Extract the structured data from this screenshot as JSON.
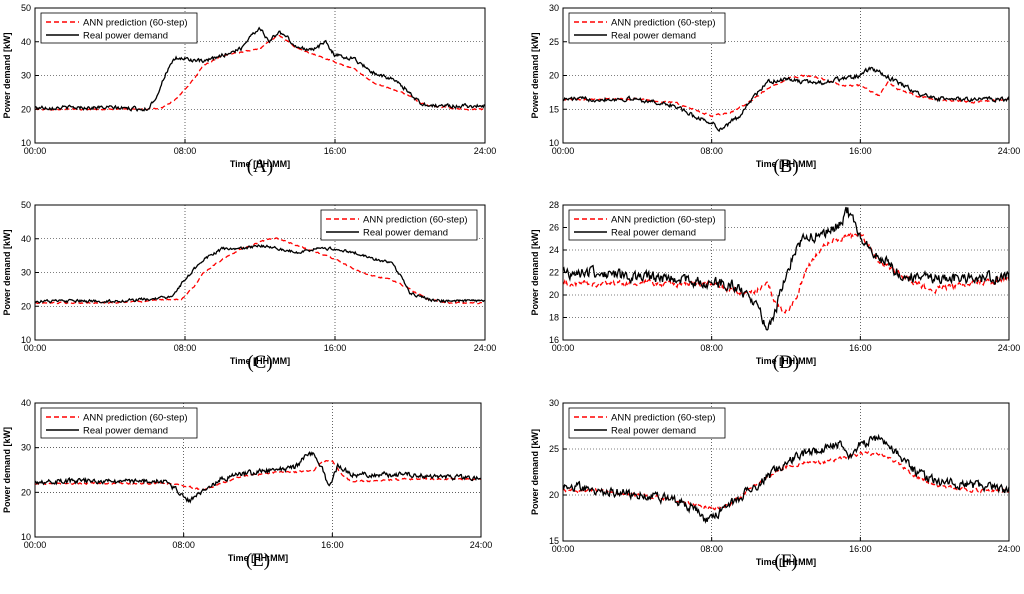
{
  "chart_data": [
    {
      "type": "line",
      "panel": "(A)",
      "panel_letter": "A",
      "title": "",
      "xlabel": "Time [HH:MM]",
      "ylabel": "Power demand [kW]",
      "xlim": [
        0,
        24
      ],
      "ylim": [
        10,
        50
      ],
      "x_ticks": [
        "00:00",
        "08:00",
        "16:00",
        "24:00"
      ],
      "y_ticks": [
        10,
        20,
        30,
        40,
        50
      ],
      "grid": true,
      "legend_position": "top-left",
      "series": [
        {
          "name": "ANN prediction (60-step)",
          "color": "#ff0000",
          "dash": true,
          "noise": 0.3,
          "x": [
            0,
            2,
            4,
            6,
            6.8,
            7.5,
            8.2,
            9,
            10,
            11,
            12,
            12.5,
            13,
            14,
            15,
            16,
            17,
            18,
            19,
            20,
            20.5,
            21,
            22,
            23,
            24
          ],
          "values": [
            20,
            20,
            20,
            20,
            20.5,
            23,
            27,
            33,
            36,
            37,
            38,
            40,
            42,
            38,
            36,
            34,
            32,
            28,
            26,
            24,
            22,
            21,
            20.5,
            20,
            20
          ]
        },
        {
          "name": "Real power demand",
          "color": "#000000",
          "dash": false,
          "noise": 0.9,
          "x": [
            0,
            2,
            4,
            6,
            6.5,
            7,
            7.5,
            8,
            9,
            10,
            11,
            11.5,
            12,
            12.5,
            13,
            13.5,
            14,
            15,
            15.5,
            16,
            17,
            18,
            19,
            19.8,
            20.5,
            21,
            22,
            23,
            24
          ],
          "values": [
            20.5,
            20.5,
            20.5,
            20,
            24,
            31,
            35,
            35,
            34,
            36,
            38,
            42,
            44,
            40,
            43,
            41,
            38,
            38,
            40,
            36,
            35,
            31,
            29,
            26,
            22,
            21,
            21,
            21,
            21
          ]
        }
      ]
    },
    {
      "type": "line",
      "panel": "(B)",
      "panel_letter": "B",
      "title": "",
      "xlabel": "Time [HH:MM]",
      "ylabel": "Power demand [kW]",
      "xlim": [
        0,
        24
      ],
      "ylim": [
        10,
        30
      ],
      "x_ticks": [
        "00:00",
        "08:00",
        "16:00",
        "24:00"
      ],
      "y_ticks": [
        10,
        15,
        20,
        25,
        30
      ],
      "grid": true,
      "legend_position": "top-left",
      "series": [
        {
          "name": "ANN prediction (60-step)",
          "color": "#ff0000",
          "dash": true,
          "noise": 0.2,
          "x": [
            0,
            2,
            4,
            6,
            7,
            8,
            9,
            10,
            11,
            12,
            13,
            14,
            15,
            16,
            17,
            17.5,
            18,
            19,
            20,
            22,
            24
          ],
          "values": [
            16.5,
            16.5,
            16.5,
            16,
            15,
            14,
            14.5,
            16,
            18,
            19.5,
            20,
            19.5,
            18.5,
            18.5,
            17,
            19,
            18,
            17,
            16.5,
            16,
            16.5
          ]
        },
        {
          "name": "Real power demand",
          "color": "#000000",
          "dash": false,
          "noise": 0.5,
          "x": [
            0,
            2,
            4,
            6,
            7,
            8,
            8.5,
            9,
            9.5,
            10,
            11,
            12,
            13,
            14,
            15,
            16,
            16.5,
            17,
            18,
            19,
            20,
            22,
            24
          ],
          "values": [
            16.5,
            16.5,
            16.5,
            15.5,
            14,
            13,
            12,
            13,
            14,
            16,
            19,
            19.5,
            19,
            19,
            19.5,
            20,
            21,
            20.5,
            19,
            17.5,
            16.5,
            16.5,
            16.5
          ]
        }
      ]
    },
    {
      "type": "line",
      "panel": "(C)",
      "panel_letter": "C",
      "title": "",
      "xlabel": "Time [HH:MM]",
      "ylabel": "Power demand [kW]",
      "xlim": [
        0,
        24
      ],
      "ylim": [
        10,
        50
      ],
      "x_ticks": [
        "00:00",
        "08:00",
        "16:00",
        "24:00"
      ],
      "y_ticks": [
        10,
        20,
        30,
        40,
        50
      ],
      "grid": true,
      "legend_position": "top-right",
      "series": [
        {
          "name": "ANN prediction (60-step)",
          "color": "#ff0000",
          "dash": true,
          "noise": 0.3,
          "x": [
            0,
            2,
            4,
            6,
            7,
            7.8,
            8.5,
            9,
            10,
            11,
            12,
            12.5,
            13,
            14,
            15,
            16,
            17,
            18,
            19,
            20,
            21,
            22,
            24
          ],
          "values": [
            21,
            21,
            21,
            21.5,
            22,
            22,
            26,
            30,
            34,
            37,
            39,
            40,
            40,
            38,
            36,
            34,
            31,
            29,
            28,
            25,
            22,
            21,
            21
          ]
        },
        {
          "name": "Real power demand",
          "color": "#000000",
          "dash": false,
          "noise": 0.7,
          "x": [
            0,
            2,
            4,
            6,
            7,
            7.5,
            8,
            9,
            10,
            11,
            12,
            13,
            14,
            15,
            16,
            17,
            18,
            19,
            19.5,
            20,
            21,
            22,
            24
          ],
          "values": [
            21.5,
            21.5,
            21.5,
            22,
            22.5,
            24,
            28,
            34,
            37,
            37,
            38,
            37,
            36,
            37,
            37,
            36,
            34,
            33,
            29,
            24,
            22,
            21.5,
            21.5
          ]
        }
      ]
    },
    {
      "type": "line",
      "panel": "(D)",
      "panel_letter": "D",
      "title": "",
      "xlabel": "Time [HH:MM]",
      "ylabel": "Power demand [kW]",
      "xlim": [
        0,
        24
      ],
      "ylim": [
        16,
        28
      ],
      "x_ticks": [
        "00:00",
        "08:00",
        "16:00",
        "24:00"
      ],
      "y_ticks": [
        16,
        18,
        20,
        22,
        24,
        26,
        28
      ],
      "grid": true,
      "legend_position": "top-left",
      "series": [
        {
          "name": "ANN prediction (60-step)",
          "color": "#ff0000",
          "dash": true,
          "noise": 0.4,
          "x": [
            0,
            2,
            4,
            6,
            8,
            9,
            10,
            11,
            11.5,
            12,
            12.5,
            13,
            14,
            15,
            16,
            17,
            18,
            19,
            20,
            22,
            24
          ],
          "values": [
            21,
            21,
            21,
            21,
            21,
            20.5,
            20,
            21,
            19,
            18.5,
            19.5,
            22,
            24.5,
            25,
            25.5,
            23,
            22,
            21,
            20.5,
            21,
            21.5
          ]
        },
        {
          "name": "Real power demand",
          "color": "#000000",
          "dash": false,
          "noise": 0.8,
          "x": [
            0,
            2,
            4,
            6,
            8,
            9,
            10,
            10.5,
            11,
            11.5,
            12,
            12.5,
            13,
            14,
            15,
            15.3,
            16,
            17,
            18,
            19,
            20,
            22,
            24
          ],
          "values": [
            22,
            22,
            21.5,
            21.5,
            21,
            21,
            20,
            19,
            17,
            19,
            22,
            24,
            25,
            25.5,
            26.5,
            27.5,
            25,
            23.5,
            22,
            21.5,
            21.5,
            21.5,
            21.5
          ]
        }
      ]
    },
    {
      "type": "line",
      "panel": "(E)",
      "panel_letter": "E",
      "title": "",
      "xlabel": "Time [HH:MM]",
      "ylabel": "Power demand [kW]",
      "xlim": [
        0,
        24
      ],
      "ylim": [
        10,
        40
      ],
      "x_ticks": [
        "00:00",
        "08:00",
        "16:00",
        "24:00"
      ],
      "y_ticks": [
        10,
        20,
        30,
        40
      ],
      "grid": true,
      "legend_position": "top-left",
      "series": [
        {
          "name": "ANN prediction (60-step)",
          "color": "#ff0000",
          "dash": true,
          "noise": 0.3,
          "x": [
            0,
            2,
            4,
            6,
            7,
            8,
            9,
            10,
            11,
            12,
            13,
            14,
            15,
            15.5,
            16,
            16.5,
            17,
            18,
            20,
            22,
            24
          ],
          "values": [
            22,
            22,
            22,
            22,
            22,
            21.5,
            20.5,
            22,
            23.5,
            24,
            24.5,
            24.5,
            25,
            27,
            27,
            24,
            22.5,
            22.5,
            23,
            23,
            23
          ]
        },
        {
          "name": "Real power demand",
          "color": "#000000",
          "dash": false,
          "noise": 0.9,
          "x": [
            0,
            2,
            4,
            6,
            7,
            7.8,
            8.3,
            9,
            10,
            11,
            12,
            13,
            14,
            14.5,
            15,
            15.5,
            15.8,
            16.3,
            17,
            18,
            20,
            22,
            24
          ],
          "values": [
            22.5,
            22.5,
            22.5,
            22.5,
            22.5,
            20,
            18,
            20,
            23,
            24,
            24.5,
            25,
            25.5,
            28,
            29,
            25,
            21,
            26,
            24,
            24,
            24,
            23.5,
            23
          ]
        }
      ]
    },
    {
      "type": "line",
      "panel": "(F)",
      "panel_letter": "F",
      "title": "",
      "xlabel": "Time [HH:MM]",
      "ylabel": "Power demand [kW]",
      "xlim": [
        0,
        24
      ],
      "ylim": [
        15,
        30
      ],
      "x_ticks": [
        "00:00",
        "08:00",
        "16:00",
        "24:00"
      ],
      "y_ticks": [
        15,
        20,
        25,
        30
      ],
      "grid": true,
      "legend_position": "top-left",
      "series": [
        {
          "name": "ANN prediction (60-step)",
          "color": "#ff0000",
          "dash": true,
          "noise": 0.3,
          "x": [
            0,
            2,
            4,
            6,
            7,
            8,
            9,
            10,
            11,
            12,
            13,
            14,
            15,
            16,
            17,
            18,
            19,
            20,
            22,
            24
          ],
          "values": [
            20.5,
            20.5,
            20,
            19.5,
            19,
            18.5,
            19,
            20.5,
            22,
            23,
            23.5,
            23.5,
            24,
            24.5,
            24.5,
            23.5,
            22,
            21,
            20.5,
            20.5
          ]
        },
        {
          "name": "Real power demand",
          "color": "#000000",
          "dash": false,
          "noise": 0.8,
          "x": [
            0,
            2,
            4,
            6,
            7,
            7.6,
            8,
            9,
            10,
            11,
            12,
            13,
            14,
            15,
            15.5,
            16,
            17,
            18,
            19,
            20,
            22,
            24
          ],
          "values": [
            21,
            20.5,
            20,
            19.5,
            18.5,
            17.5,
            17.5,
            19,
            20.5,
            22,
            23.5,
            24.5,
            25,
            25.5,
            24,
            25.5,
            26,
            24.5,
            22.5,
            21.5,
            21,
            20.5
          ]
        }
      ]
    }
  ]
}
